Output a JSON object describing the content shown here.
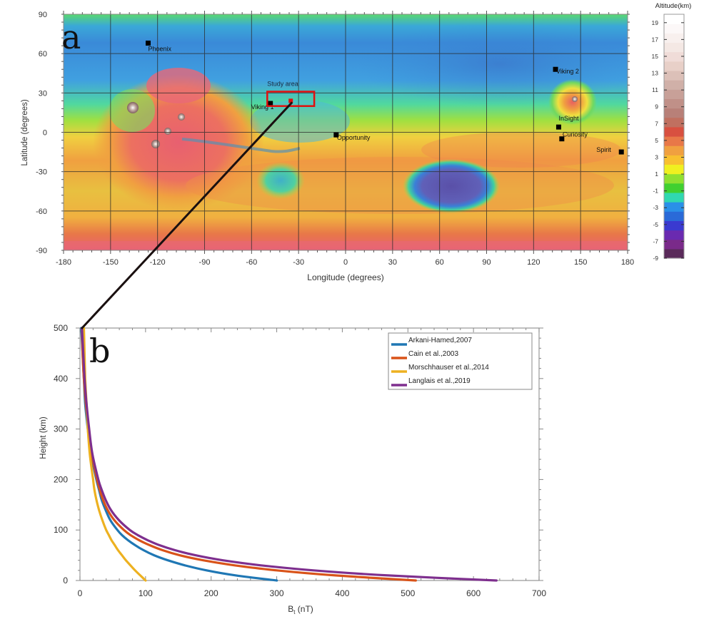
{
  "chart_data": [
    {
      "type": "heatmap",
      "panel_label": "a",
      "title": "",
      "xlabel": "Longitude (degrees)",
      "ylabel": "Latitude (degrees)",
      "xlim": [
        -180,
        180
      ],
      "ylim": [
        -90,
        90
      ],
      "xticks": [
        "-180",
        "-150",
        "-120",
        "-90",
        "-60",
        "-30",
        "0",
        "30",
        "60",
        "90",
        "120",
        "150",
        "180"
      ],
      "yticks": [
        "90",
        "60",
        "30",
        "0",
        "-30",
        "-60",
        "-90"
      ],
      "grid": true,
      "colorbar": {
        "title": "Altitude(km)",
        "ticks": [
          "19",
          "17",
          "15",
          "13",
          "11",
          "9",
          "7",
          "5",
          "3",
          "1",
          "-1",
          "-3",
          "-5",
          "-7",
          "-9"
        ],
        "range": [
          -9,
          20
        ],
        "colors": [
          "#5a2a5a",
          "#7a2a8a",
          "#6a2ab0",
          "#3a3ad0",
          "#2a6ad8",
          "#2a90e8",
          "#30d8b0",
          "#40d030",
          "#90e030",
          "#f0f020",
          "#f8c030",
          "#f0a040",
          "#e87848",
          "#d85040",
          "#c07060",
          "#b88078",
          "#c09088",
          "#c8a098",
          "#d0b0a8",
          "#dcc0b8",
          "#e8d0c8",
          "#f0dcd8",
          "#f4e8e4",
          "#f8f0ee",
          "#fcf8f8",
          "#ffffff"
        ]
      },
      "sites": [
        {
          "name": "Phoenix",
          "lon": -126,
          "lat": 68
        },
        {
          "name": "Viking 1",
          "lon": -48,
          "lat": 22
        },
        {
          "name": "Opportunity",
          "lon": -6,
          "lat": -2
        },
        {
          "name": "Viking 2",
          "lon": 134,
          "lat": 48
        },
        {
          "name": "InSight",
          "lon": 136,
          "lat": 4
        },
        {
          "name": "Curiosity",
          "lon": 138,
          "lat": -5
        },
        {
          "name": "Spirit",
          "lon": 176,
          "lat": -15
        }
      ],
      "study_area": {
        "label": "Study area",
        "lon_range": [
          -50,
          -20
        ],
        "lat_range": [
          20,
          31
        ],
        "center": {
          "lon": -35,
          "lat": 24
        }
      }
    },
    {
      "type": "line",
      "panel_label": "b",
      "title": "",
      "xlabel": "B",
      "xlabel_sub": "t",
      "xlabel_unit": " (nT)",
      "ylabel": "Height (km)",
      "xlim": [
        0,
        700
      ],
      "ylim": [
        0,
        500
      ],
      "xticks": [
        "0",
        "100",
        "200",
        "300",
        "400",
        "500",
        "600",
        "700"
      ],
      "yticks": [
        "0",
        "100",
        "200",
        "300",
        "400",
        "500"
      ],
      "legend_position": "top-right",
      "x_height_km": [
        0,
        10,
        20,
        30,
        40,
        50,
        60,
        70,
        80,
        90,
        100,
        120,
        140,
        160,
        180,
        200,
        250,
        300,
        350,
        400,
        450,
        500
      ],
      "series": [
        {
          "name": "Arkani-Hamed,2007",
          "color": "#1f77b4",
          "height": [
            0,
            10,
            20,
            30,
            40,
            50,
            60,
            70,
            80,
            90,
            100,
            120,
            140,
            160,
            180,
            200,
            250,
            300,
            350,
            400,
            450,
            500
          ],
          "values": [
            300,
            238,
            193,
            160,
            134,
            113,
            97,
            84,
            73,
            64,
            57,
            46,
            39,
            33,
            29,
            25,
            17,
            12,
            8,
            6,
            4,
            2
          ]
        },
        {
          "name": "Cain et al.,2003",
          "color": "#d95319",
          "height": [
            0,
            10,
            20,
            30,
            40,
            50,
            60,
            70,
            80,
            90,
            100,
            120,
            140,
            160,
            180,
            200,
            250,
            300,
            350,
            400,
            450,
            500
          ],
          "values": [
            512,
            390,
            300,
            236,
            188,
            152,
            126,
            106,
            90,
            77,
            67,
            52,
            42,
            35,
            30,
            26,
            18,
            13,
            9,
            6,
            4,
            3
          ]
        },
        {
          "name": "Morschhauser et al.,2014",
          "color": "#edb120",
          "height": [
            0,
            10,
            20,
            30,
            40,
            50,
            60,
            70,
            80,
            90,
            100,
            120,
            140,
            160,
            180,
            200,
            250,
            300,
            350,
            400,
            450,
            500
          ],
          "values": [
            100,
            92,
            84,
            77,
            70,
            64,
            58,
            53,
            48,
            44,
            40,
            34,
            29,
            25,
            22,
            20,
            15,
            12,
            10,
            8,
            7,
            6
          ]
        },
        {
          "name": "Langlais et al.,2019",
          "color": "#7e2f8e",
          "height": [
            0,
            10,
            20,
            30,
            40,
            50,
            60,
            70,
            80,
            90,
            100,
            120,
            140,
            160,
            180,
            200,
            250,
            300,
            350,
            400,
            450,
            500
          ],
          "values": [
            635,
            470,
            356,
            276,
            218,
            176,
            145,
            121,
            103,
            88,
            76,
            59,
            47,
            39,
            33,
            28,
            19,
            14,
            10,
            7,
            5,
            3
          ]
        }
      ]
    }
  ]
}
